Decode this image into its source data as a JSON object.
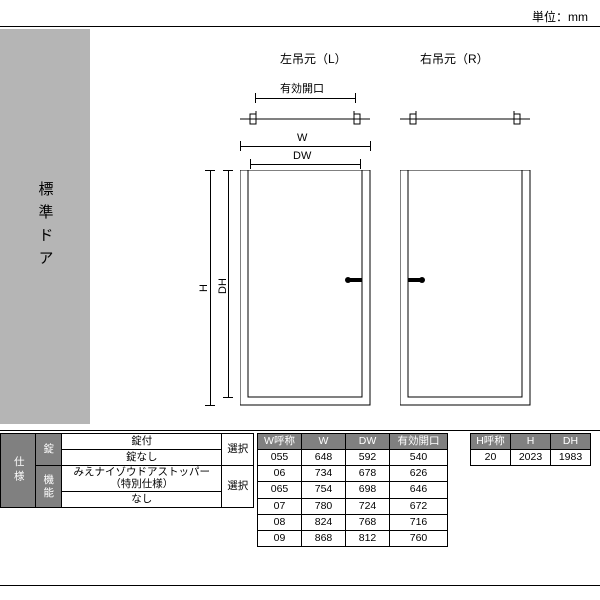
{
  "unit": "単位：mm",
  "title": "標準ドア",
  "leftLabel": "左吊元（L）",
  "rightLabel": "右吊元（R）",
  "effOpening": "有効開口",
  "W": "W",
  "DW": "DW",
  "H": "H",
  "DH": "DH",
  "spec": {
    "header": "仕様",
    "lockHdr": "錠",
    "lockWith": "錠付",
    "lockWithout": "錠なし",
    "funcHdr": "機能",
    "func1a": "みえナイゾウドアストッパー",
    "func1b": "（特別仕様）",
    "func2": "なし",
    "select": "選択"
  },
  "wTable": {
    "headers": [
      "W呼称",
      "W",
      "DW",
      "有効開口"
    ],
    "rows": [
      [
        "055",
        "648",
        "592",
        "540"
      ],
      [
        "06",
        "734",
        "678",
        "626"
      ],
      [
        "065",
        "754",
        "698",
        "646"
      ],
      [
        "07",
        "780",
        "724",
        "672"
      ],
      [
        "08",
        "824",
        "768",
        "716"
      ],
      [
        "09",
        "868",
        "812",
        "760"
      ]
    ]
  },
  "hTable": {
    "headers": [
      "H呼称",
      "H",
      "DH"
    ],
    "rows": [
      [
        "20",
        "2023",
        "1983"
      ]
    ]
  }
}
